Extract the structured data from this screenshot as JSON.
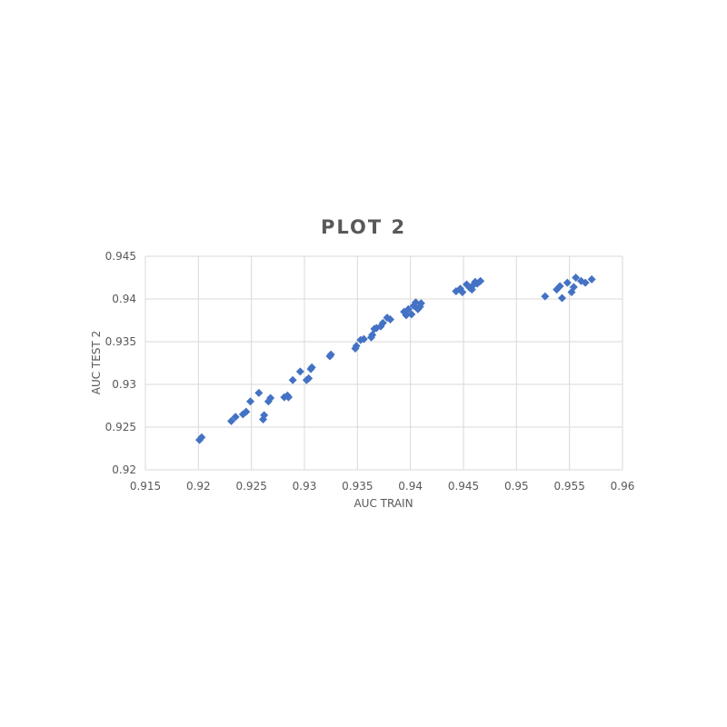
{
  "chart_data": {
    "type": "scatter",
    "title": "PLOT 2",
    "xlabel": "AUC TRAIN",
    "ylabel": "AUC TEST 2",
    "xlim": [
      0.915,
      0.96
    ],
    "ylim": [
      0.92,
      0.945
    ],
    "x_ticks": [
      "0.915",
      "0.92",
      "0.925",
      "0.93",
      "0.935",
      "0.94",
      "0.945",
      "0.95",
      "0.955",
      "0.96"
    ],
    "y_ticks": [
      "0.92",
      "0.925",
      "0.93",
      "0.935",
      "0.94",
      "0.945"
    ],
    "grid": true,
    "legend": "none",
    "marker": "diamond",
    "color": "#4472C4",
    "series": [
      {
        "points": [
          [
            0.9201,
            0.9235
          ],
          [
            0.9203,
            0.9238
          ],
          [
            0.9231,
            0.9257
          ],
          [
            0.9235,
            0.9262
          ],
          [
            0.9242,
            0.9265
          ],
          [
            0.9245,
            0.9268
          ],
          [
            0.9249,
            0.928
          ],
          [
            0.9257,
            0.929
          ],
          [
            0.9261,
            0.9259
          ],
          [
            0.9262,
            0.9264
          ],
          [
            0.9266,
            0.928
          ],
          [
            0.9268,
            0.9284
          ],
          [
            0.9281,
            0.9285
          ],
          [
            0.9284,
            0.9287
          ],
          [
            0.9285,
            0.9285
          ],
          [
            0.9289,
            0.9305
          ],
          [
            0.9296,
            0.9315
          ],
          [
            0.9302,
            0.9305
          ],
          [
            0.9304,
            0.9307
          ],
          [
            0.9306,
            0.9318
          ],
          [
            0.9307,
            0.932
          ],
          [
            0.9324,
            0.9333
          ],
          [
            0.9325,
            0.9335
          ],
          [
            0.9348,
            0.9342
          ],
          [
            0.9349,
            0.9345
          ],
          [
            0.9353,
            0.9352
          ],
          [
            0.9356,
            0.9353
          ],
          [
            0.9363,
            0.9355
          ],
          [
            0.9364,
            0.9358
          ],
          [
            0.9366,
            0.9365
          ],
          [
            0.9368,
            0.9366
          ],
          [
            0.9372,
            0.9368
          ],
          [
            0.9374,
            0.9372
          ],
          [
            0.9378,
            0.9378
          ],
          [
            0.9381,
            0.9376
          ],
          [
            0.9394,
            0.9385
          ],
          [
            0.9396,
            0.9381
          ],
          [
            0.9398,
            0.9388
          ],
          [
            0.9401,
            0.9382
          ],
          [
            0.9403,
            0.9392
          ],
          [
            0.9405,
            0.9396
          ],
          [
            0.9407,
            0.9388
          ],
          [
            0.9409,
            0.9391
          ],
          [
            0.941,
            0.9395
          ],
          [
            0.9443,
            0.9409
          ],
          [
            0.9447,
            0.9412
          ],
          [
            0.9449,
            0.9408
          ],
          [
            0.9453,
            0.9417
          ],
          [
            0.9456,
            0.9413
          ],
          [
            0.9458,
            0.9411
          ],
          [
            0.9459,
            0.9416
          ],
          [
            0.9461,
            0.942
          ],
          [
            0.9463,
            0.9418
          ],
          [
            0.9466,
            0.9421
          ],
          [
            0.9527,
            0.9403
          ],
          [
            0.9538,
            0.9411
          ],
          [
            0.9541,
            0.9415
          ],
          [
            0.9543,
            0.9401
          ],
          [
            0.9548,
            0.9419
          ],
          [
            0.9552,
            0.9408
          ],
          [
            0.9554,
            0.9414
          ],
          [
            0.9556,
            0.9425
          ],
          [
            0.9561,
            0.9421
          ],
          [
            0.9565,
            0.9419
          ],
          [
            0.9571,
            0.9423
          ]
        ]
      }
    ]
  }
}
